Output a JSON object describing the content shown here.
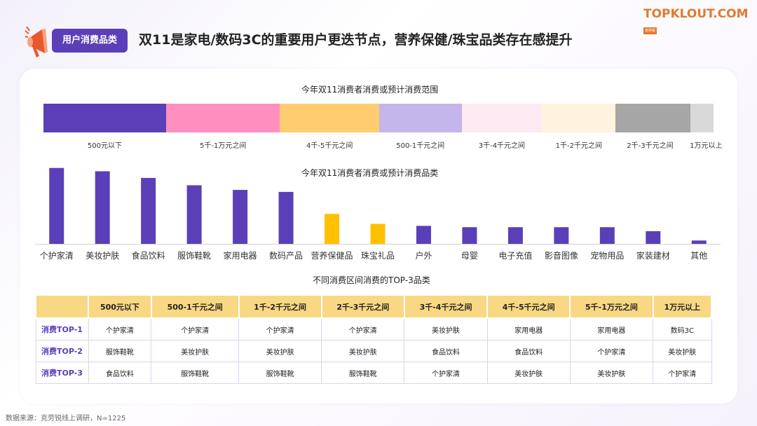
{
  "header": {
    "tag_label": "用户消费品类",
    "headline": "双11是家电/数码3C的重要用户更迭节点，营养保健/珠宝品类存在感提升"
  },
  "logo": {
    "name": "TOPKLOUT.COM",
    "sub": "克劳锐"
  },
  "icons": {
    "megaphone": "megaphone-icon"
  },
  "colors": {
    "accent": "#5b3fb8",
    "highlight": "#ffc000",
    "table_header": "#f9d884"
  },
  "chart_data": [
    {
      "type": "bar",
      "title": "今年双11消费者消费或预计消费范围",
      "orientation": "horizontal-stacked-100",
      "categories": [
        "500元以下",
        "5千-1万元之间",
        "4千-5千元之间",
        "500-1千元之间",
        "3千-4千元之间",
        "1千-2千元之间",
        "2千-3千元之间",
        "1万元以上"
      ],
      "values": [
        18.3,
        17.0,
        14.8,
        12.3,
        12.0,
        11.0,
        11.1,
        3.5
      ],
      "colors": [
        "#5b3fb8",
        "#ff8fbf",
        "#ffcc70",
        "#c4b5ea",
        "#fde9f1",
        "#fdf3df",
        "#a6a6a6",
        "#d9d9d9"
      ]
    },
    {
      "type": "bar",
      "title": "今年双11消费者消费或预计消费品类",
      "categories": [
        "个护家清",
        "美妆护肤",
        "食品饮料",
        "服饰鞋靴",
        "家用电器",
        "数码产品",
        "营养保健品",
        "珠宝礼品",
        "户外",
        "母婴",
        "电子充值",
        "影音图像",
        "宠物用品",
        "家装建材",
        "其他"
      ],
      "values": [
        114,
        109,
        99,
        88,
        81,
        78,
        45,
        30,
        27,
        25,
        25,
        25,
        25,
        19,
        5
      ],
      "highlight": [
        "营养保健品",
        "珠宝礼品"
      ],
      "ylim": [
        0,
        120
      ]
    },
    {
      "type": "table",
      "title": "不同消费区间消费的TOP-3品类",
      "columns": [
        "",
        "500元以下",
        "500-1千元之间",
        "1千-2千元之间",
        "2千-3千元之间",
        "3千-4千元之间",
        "4千-5千元之间",
        "5千-1万元之间",
        "1万元以上"
      ],
      "rows": [
        {
          "label": "消费TOP-1",
          "cells": [
            "个护家清",
            "个护家清",
            "个护家清",
            "个护家清",
            "美妆护肤",
            "家用电器",
            "家用电器",
            "数码3C"
          ]
        },
        {
          "label": "消费TOP-2",
          "cells": [
            "服饰鞋靴",
            "美妆护肤",
            "美妆护肤",
            "美妆护肤",
            "食品饮料",
            "食品饮料",
            "个护家清",
            "美妆护肤"
          ]
        },
        {
          "label": "消费TOP-3",
          "cells": [
            "食品饮料",
            "服饰鞋靴",
            "服饰鞋靴",
            "服饰鞋靴",
            "个护家清",
            "美妆护肤",
            "美妆护肤",
            "个护家清"
          ]
        }
      ]
    }
  ],
  "footer": {
    "source": "数据来源：克劳锐线上调研，N=1225"
  }
}
